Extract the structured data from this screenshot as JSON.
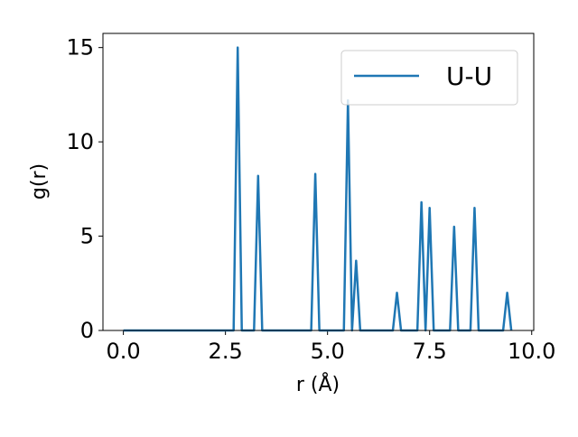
{
  "chart_data": {
    "type": "line",
    "x_label": "r (Å)",
    "y_label": "g(r)",
    "x": [
      0,
      2.7,
      2.8,
      2.9,
      3.2,
      3.3,
      3.4,
      4.6,
      4.7,
      4.8,
      5.4,
      5.5,
      5.6,
      5.7,
      5.8,
      6.6,
      6.7,
      6.8,
      7.2,
      7.3,
      7.4,
      7.5,
      7.6,
      8.0,
      8.1,
      8.2,
      8.5,
      8.6,
      8.7,
      9.3,
      9.4,
      9.5
    ],
    "series": [
      {
        "name": "U-U",
        "color": "#1f77b4",
        "values": [
          0,
          0,
          15,
          0,
          0,
          8.2,
          0,
          0,
          8.3,
          0,
          0,
          12.2,
          0,
          3.7,
          0,
          0,
          2.0,
          0,
          0,
          6.8,
          0,
          6.5,
          0,
          0,
          5.5,
          0,
          0,
          6.5,
          0,
          0,
          2.0,
          0
        ]
      }
    ],
    "xlim": [
      -0.5,
      10.05
    ],
    "ylim": [
      0,
      15.75
    ],
    "xticks": [
      {
        "value": 0,
        "label": "0.0"
      },
      {
        "value": 2.5,
        "label": "2.5"
      },
      {
        "value": 5,
        "label": "5.0"
      },
      {
        "value": 7.5,
        "label": "7.5"
      },
      {
        "value": 10,
        "label": "10.0"
      }
    ],
    "yticks": [
      0,
      5,
      10,
      15
    ],
    "legend": "upper right"
  }
}
